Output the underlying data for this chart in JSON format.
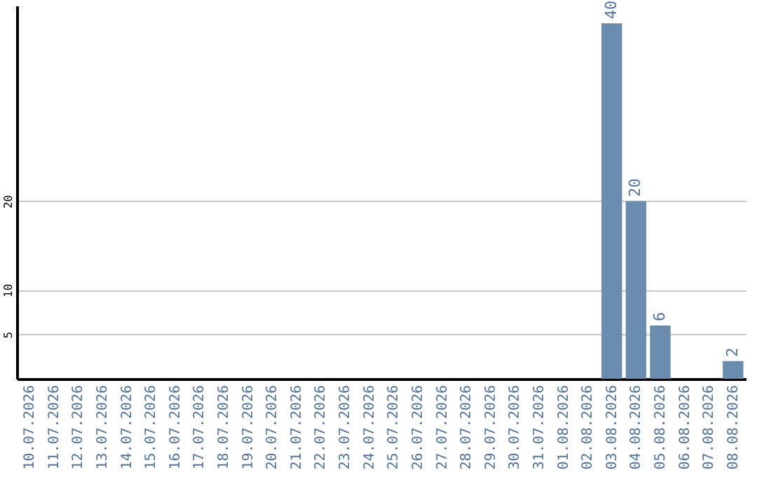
{
  "chart_data": {
    "type": "bar",
    "categories": [
      "10.07.2026",
      "11.07.2026",
      "12.07.2026",
      "13.07.2026",
      "14.07.2026",
      "15.07.2026",
      "16.07.2026",
      "17.07.2026",
      "18.07.2026",
      "19.07.2026",
      "20.07.2026",
      "21.07.2026",
      "22.07.2026",
      "23.07.2026",
      "24.07.2026",
      "25.07.2026",
      "26.07.2026",
      "27.07.2026",
      "28.07.2026",
      "29.07.2026",
      "30.07.2026",
      "31.07.2026",
      "01.08.2026",
      "02.08.2026",
      "03.08.2026",
      "04.08.2026",
      "05.08.2026",
      "06.08.2026",
      "07.08.2026",
      "08.08.2026"
    ],
    "values": [
      0,
      0,
      0,
      0,
      0,
      0,
      0,
      0,
      0,
      0,
      0,
      0,
      0,
      0,
      0,
      0,
      0,
      0,
      0,
      0,
      0,
      0,
      0,
      0,
      40,
      20,
      6,
      0,
      0,
      2
    ],
    "value_labels": [
      null,
      null,
      null,
      null,
      null,
      null,
      null,
      null,
      null,
      null,
      null,
      null,
      null,
      null,
      null,
      null,
      null,
      null,
      null,
      null,
      null,
      null,
      null,
      null,
      "40",
      "20",
      "6",
      null,
      null,
      "2"
    ],
    "color": "#6a8caf",
    "ylim": [
      0,
      42
    ],
    "yticks": [
      5,
      10,
      20
    ],
    "grid": "y"
  }
}
